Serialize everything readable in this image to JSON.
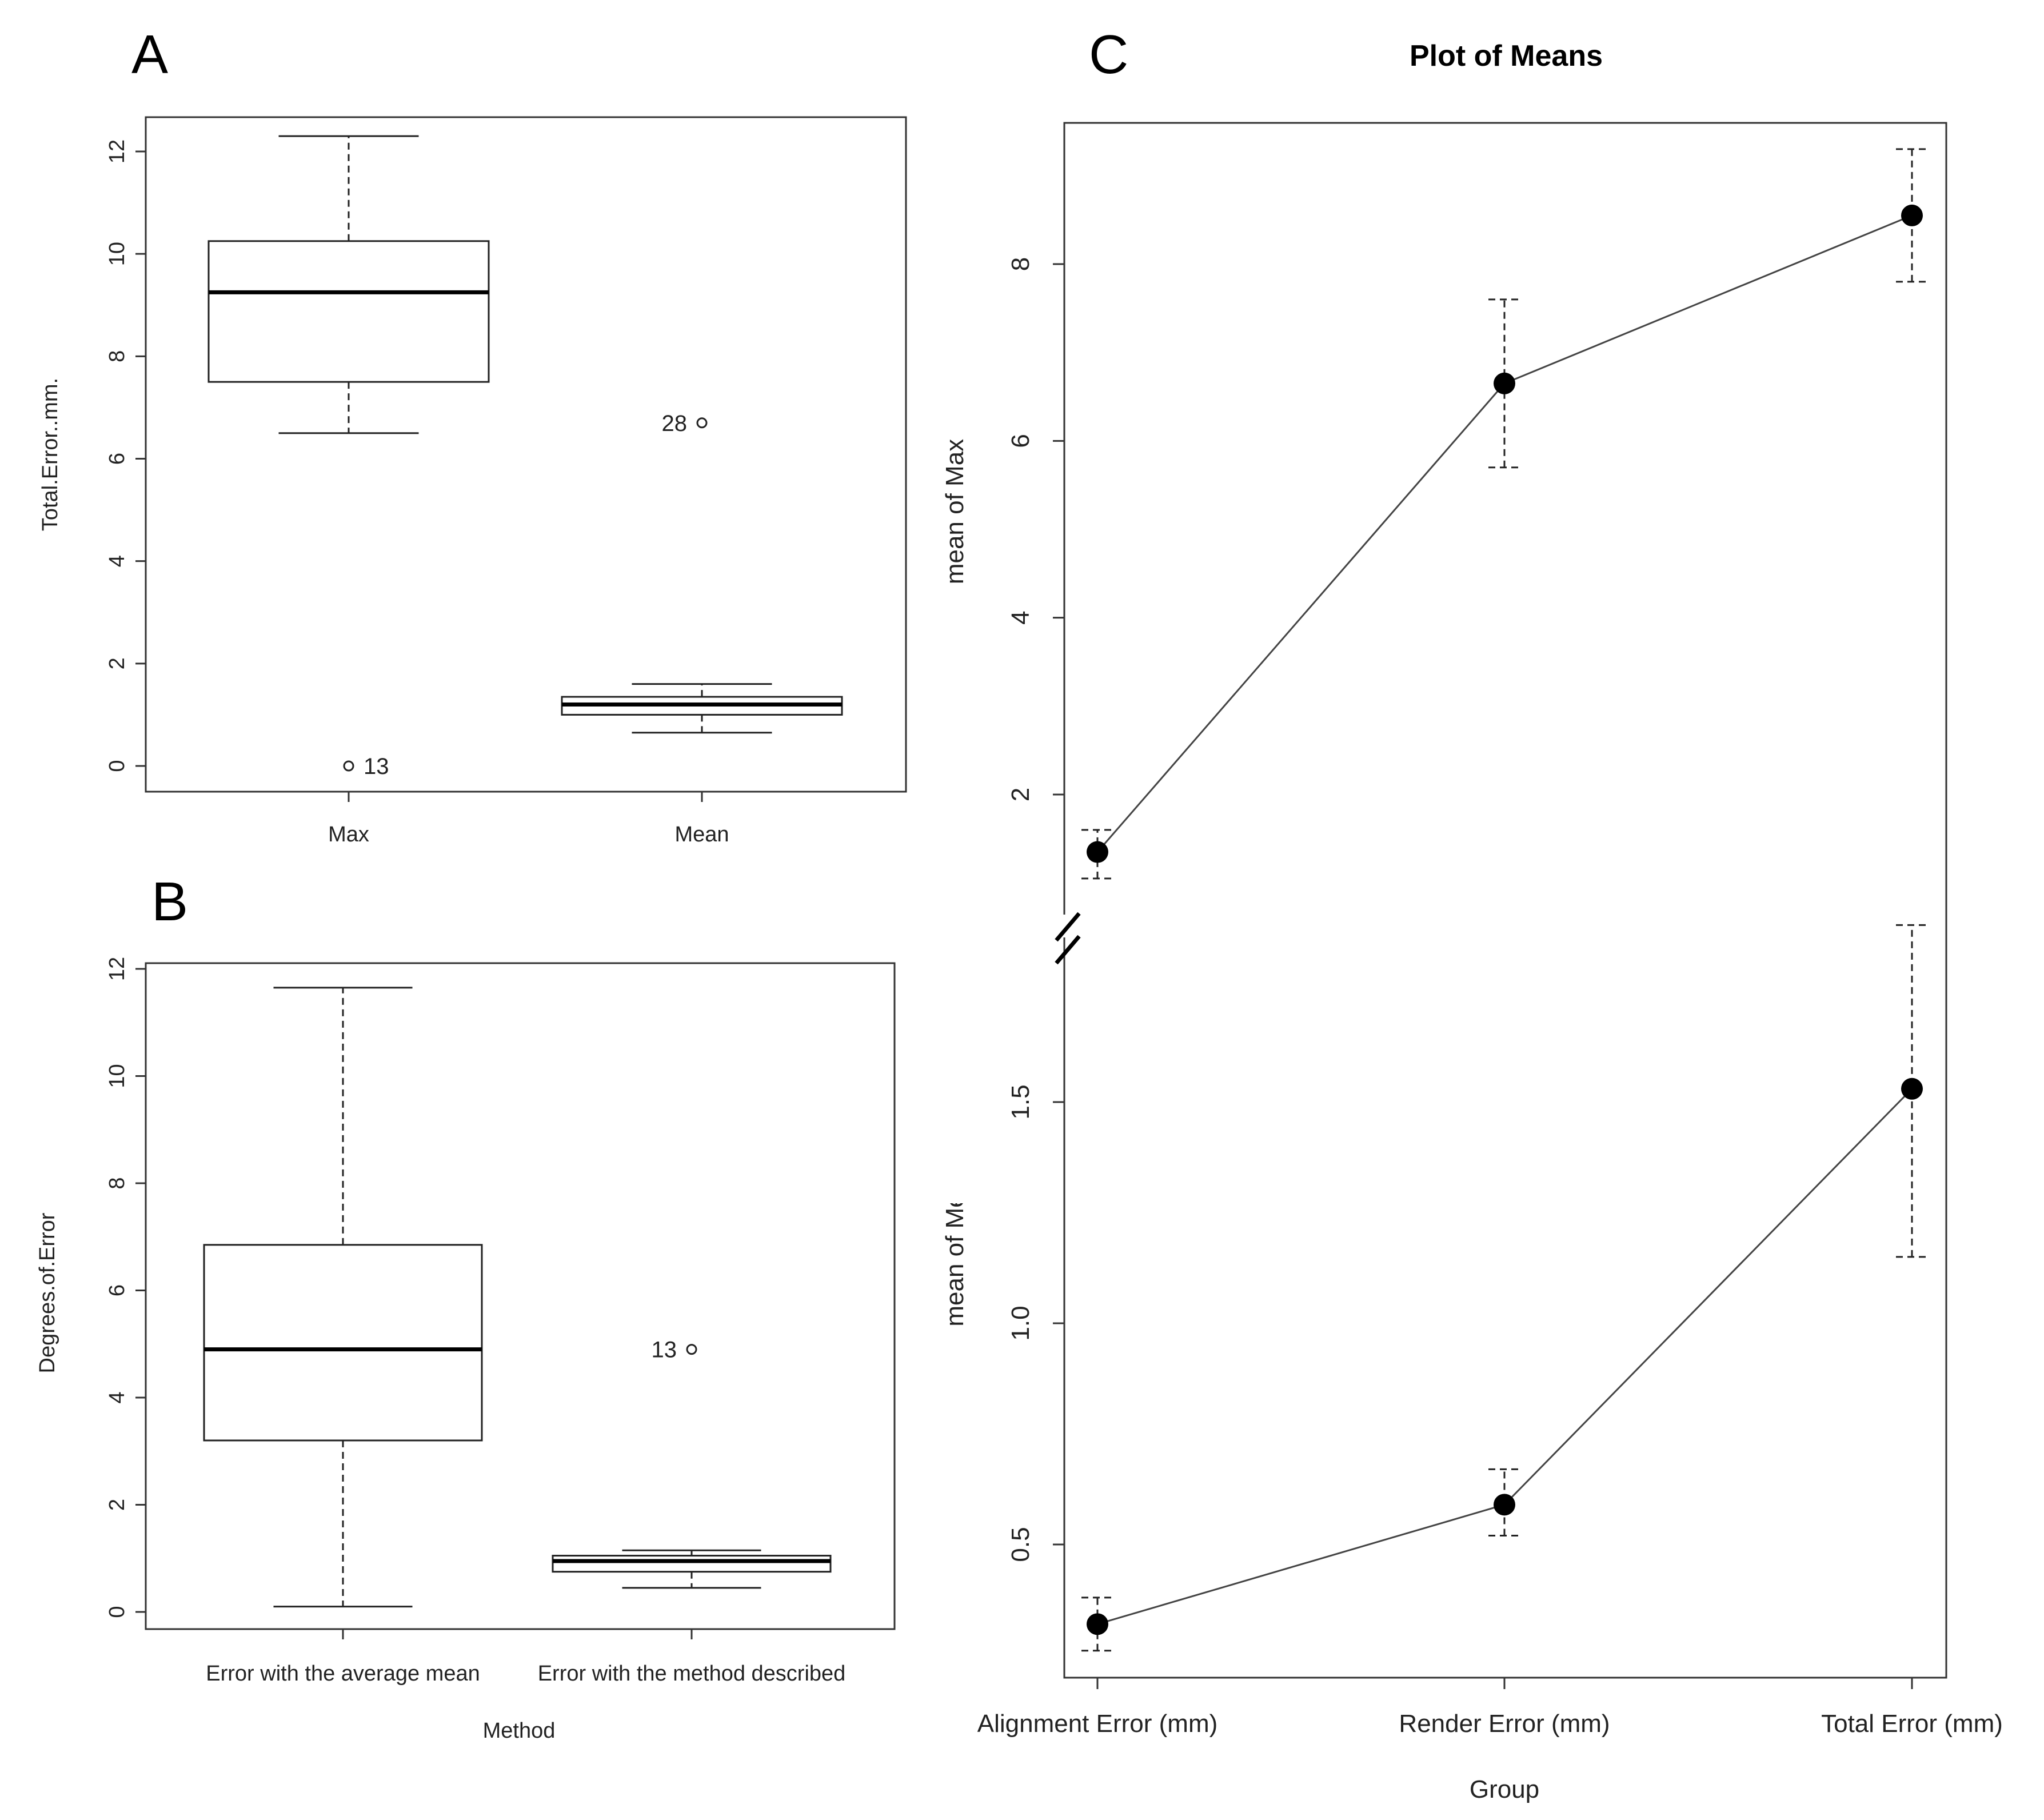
{
  "chart_data": [
    {
      "panel": "A",
      "type": "box",
      "xlabel": "",
      "ylabel": "Total.Error..mm.",
      "ylim": [
        0,
        12
      ],
      "yticks": [
        "0",
        "2",
        "4",
        "6",
        "8",
        "10",
        "12"
      ],
      "categories": [
        "Max",
        "Mean"
      ],
      "boxes": [
        {
          "name": "Max",
          "whisker_low": 6.5,
          "q1": 7.5,
          "median": 9.25,
          "q3": 10.25,
          "whisker_high": 12.3,
          "outliers": [
            {
              "value": 0.0,
              "label": "13",
              "side": "right"
            }
          ]
        },
        {
          "name": "Mean",
          "whisker_low": 0.65,
          "q1": 1.0,
          "median": 1.2,
          "q3": 1.35,
          "whisker_high": 1.6,
          "outliers": [
            {
              "value": 6.7,
              "label": "28",
              "side": "left"
            }
          ]
        }
      ]
    },
    {
      "panel": "B",
      "type": "box",
      "xlabel": "Method",
      "ylabel": "Degrees.of.Error",
      "ylim": [
        0,
        12
      ],
      "yticks": [
        "0",
        "2",
        "4",
        "6",
        "8",
        "10",
        "12"
      ],
      "categories": [
        "Error with the average mean",
        "Error with the method described"
      ],
      "boxes": [
        {
          "name": "Error with the average mean",
          "whisker_low": 0.1,
          "q1": 3.2,
          "median": 4.9,
          "q3": 6.85,
          "whisker_high": 11.65,
          "outliers": []
        },
        {
          "name": "Error with the method described",
          "whisker_low": 0.45,
          "q1": 0.75,
          "median": 0.95,
          "q3": 1.05,
          "whisker_high": 1.15,
          "outliers": [
            {
              "value": 4.9,
              "label": "13",
              "side": "left"
            }
          ]
        }
      ]
    },
    {
      "panel": "C",
      "type": "line",
      "title": "Plot of Means",
      "xlabel": "Group",
      "categories": [
        "Alignment Error (mm)",
        "Render Error (mm)",
        "Total Error (mm)"
      ],
      "upper": {
        "ylabel": "mean of Max",
        "ylim": [
          1,
          9.6
        ],
        "yticks": [
          2,
          4,
          6,
          8
        ],
        "ytick_labels": [
          "2",
          "4",
          "6",
          "8"
        ],
        "means": [
          1.35,
          6.65,
          8.55
        ],
        "error_low": [
          1.05,
          5.7,
          7.8
        ],
        "error_high": [
          1.6,
          7.6,
          9.3
        ]
      },
      "lower": {
        "ylabel": "mean of Mean",
        "ylim": [
          0.27,
          1.85
        ],
        "yticks": [
          0.5,
          1.0,
          1.5
        ],
        "ytick_labels": [
          "0.5",
          "1.0",
          "1.5"
        ],
        "means": [
          0.32,
          0.59,
          1.53
        ],
        "error_low": [
          0.26,
          0.52,
          1.15
        ],
        "error_high": [
          0.38,
          0.67,
          1.9
        ]
      }
    }
  ]
}
